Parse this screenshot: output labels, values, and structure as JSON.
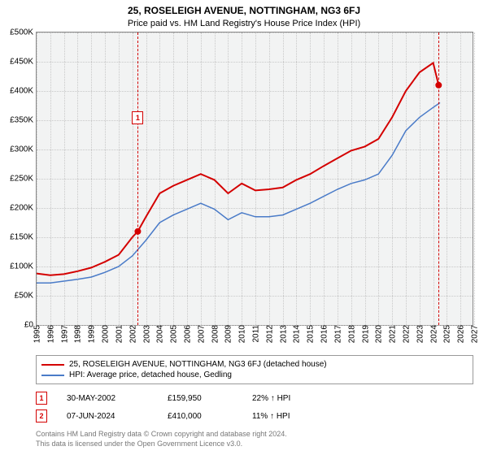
{
  "title": "25, ROSELEIGH AVENUE, NOTTINGHAM, NG3 6FJ",
  "subtitle": "Price paid vs. HM Land Registry's House Price Index (HPI)",
  "chart": {
    "type": "line",
    "background_color": "#f2f3f3",
    "grid_color": "#c8c8c8",
    "border_color": "#888888",
    "ylim": [
      0,
      500000
    ],
    "ytick_step": 50000,
    "ytick_labels": [
      "£0",
      "£50K",
      "£100K",
      "£150K",
      "£200K",
      "£250K",
      "£300K",
      "£350K",
      "£400K",
      "£450K",
      "£500K"
    ],
    "xlim": [
      1995,
      2027
    ],
    "xticks": [
      1995,
      1996,
      1997,
      1998,
      1999,
      2000,
      2001,
      2002,
      2003,
      2004,
      2005,
      2006,
      2007,
      2008,
      2009,
      2010,
      2011,
      2012,
      2013,
      2014,
      2015,
      2016,
      2017,
      2018,
      2019,
      2020,
      2021,
      2022,
      2023,
      2024,
      2025,
      2026,
      2027
    ],
    "label_fontsize": 10,
    "series": [
      {
        "name": "property",
        "color": "#d40000",
        "width": 2,
        "points": [
          [
            1995,
            88000
          ],
          [
            1996,
            85000
          ],
          [
            1997,
            87000
          ],
          [
            1998,
            92000
          ],
          [
            1999,
            98000
          ],
          [
            2000,
            108000
          ],
          [
            2001,
            120000
          ],
          [
            2002,
            150000
          ],
          [
            2002.4,
            159950
          ],
          [
            2003,
            185000
          ],
          [
            2004,
            225000
          ],
          [
            2005,
            238000
          ],
          [
            2006,
            248000
          ],
          [
            2007,
            258000
          ],
          [
            2008,
            248000
          ],
          [
            2009,
            225000
          ],
          [
            2010,
            242000
          ],
          [
            2011,
            230000
          ],
          [
            2012,
            232000
          ],
          [
            2013,
            235000
          ],
          [
            2014,
            248000
          ],
          [
            2015,
            258000
          ],
          [
            2016,
            272000
          ],
          [
            2017,
            285000
          ],
          [
            2018,
            298000
          ],
          [
            2019,
            305000
          ],
          [
            2020,
            318000
          ],
          [
            2021,
            355000
          ],
          [
            2022,
            400000
          ],
          [
            2023,
            432000
          ],
          [
            2024,
            448000
          ],
          [
            2024.4,
            410000
          ]
        ]
      },
      {
        "name": "hpi",
        "color": "#4a7bc8",
        "width": 1.5,
        "points": [
          [
            1995,
            72000
          ],
          [
            1996,
            72000
          ],
          [
            1997,
            75000
          ],
          [
            1998,
            78000
          ],
          [
            1999,
            82000
          ],
          [
            2000,
            90000
          ],
          [
            2001,
            100000
          ],
          [
            2002,
            118000
          ],
          [
            2003,
            145000
          ],
          [
            2004,
            175000
          ],
          [
            2005,
            188000
          ],
          [
            2006,
            198000
          ],
          [
            2007,
            208000
          ],
          [
            2008,
            198000
          ],
          [
            2009,
            180000
          ],
          [
            2010,
            192000
          ],
          [
            2011,
            185000
          ],
          [
            2012,
            185000
          ],
          [
            2013,
            188000
          ],
          [
            2014,
            198000
          ],
          [
            2015,
            208000
          ],
          [
            2016,
            220000
          ],
          [
            2017,
            232000
          ],
          [
            2018,
            242000
          ],
          [
            2019,
            248000
          ],
          [
            2020,
            258000
          ],
          [
            2021,
            290000
          ],
          [
            2022,
            332000
          ],
          [
            2023,
            355000
          ],
          [
            2024,
            372000
          ],
          [
            2024.5,
            380000
          ]
        ]
      }
    ],
    "markers": [
      {
        "n": "1",
        "x": 2002.4,
        "y": 159950,
        "color": "#d40000",
        "label_y_offset": -140
      },
      {
        "n": "2",
        "x": 2024.4,
        "y": 410000,
        "color": "#d40000",
        "label_y_offset": -170
      }
    ]
  },
  "legend": {
    "items": [
      {
        "color": "#d40000",
        "label": "25, ROSELEIGH AVENUE, NOTTINGHAM, NG3 6FJ (detached house)"
      },
      {
        "color": "#4a7bc8",
        "label": "HPI: Average price, detached house, Gedling"
      }
    ]
  },
  "sales": [
    {
      "n": "1",
      "color": "#d40000",
      "date": "30-MAY-2002",
      "price": "£159,950",
      "pct": "22% ↑ HPI"
    },
    {
      "n": "2",
      "color": "#d40000",
      "date": "07-JUN-2024",
      "price": "£410,000",
      "pct": "11% ↑ HPI"
    }
  ],
  "footer": {
    "line1": "Contains HM Land Registry data © Crown copyright and database right 2024.",
    "line2": "This data is licensed under the Open Government Licence v3.0."
  }
}
